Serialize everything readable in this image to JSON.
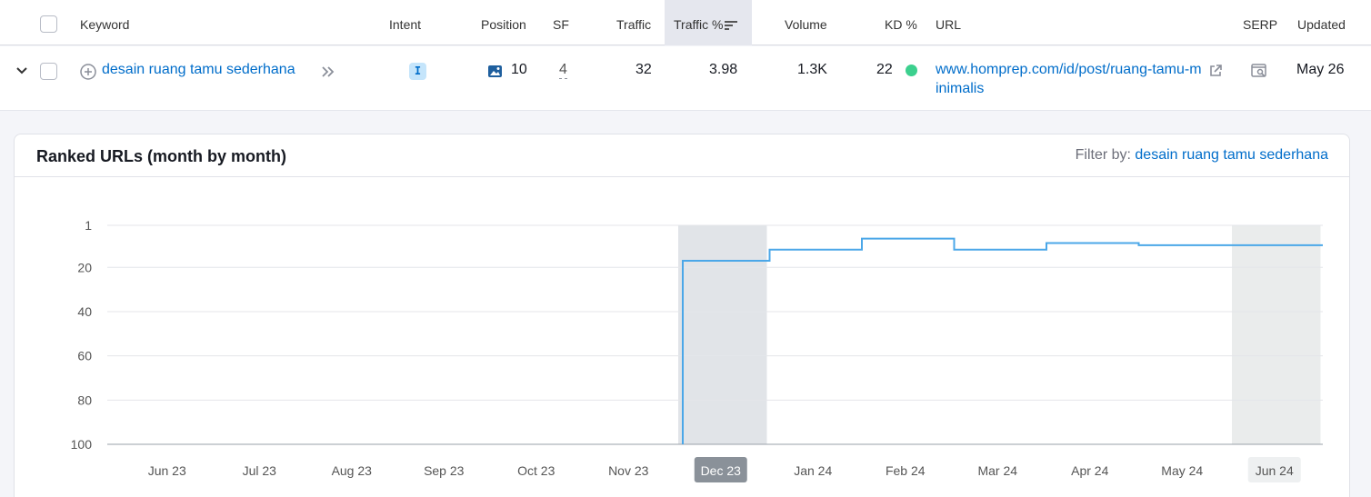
{
  "table": {
    "headers": {
      "keyword": "Keyword",
      "intent": "Intent",
      "position": "Position",
      "sf": "SF",
      "traffic": "Traffic",
      "traffic_pct": "Traffic %",
      "volume": "Volume",
      "kd": "KD %",
      "url": "URL",
      "serp": "SERP",
      "updated": "Updated"
    },
    "row": {
      "keyword": "desain ruang tamu sederhana",
      "intent": "I",
      "position": "10",
      "sf": "4",
      "traffic": "32",
      "traffic_pct": "3.98",
      "volume": "1.3K",
      "kd": "22",
      "kd_color": "#3cd08e",
      "url": "www.homprep.com/id/post/ruang-tamu-minimalis",
      "updated": "May 26"
    }
  },
  "card": {
    "title": "Ranked URLs (month by month)",
    "filter_label": "Filter by:",
    "filter_value": "desain ruang tamu sederhana"
  },
  "chart_data": {
    "type": "line",
    "step": true,
    "y_reversed": true,
    "ylim": [
      1,
      100
    ],
    "yticks": [
      1,
      20,
      40,
      60,
      80,
      100
    ],
    "categories": [
      "Jun 23",
      "Jul 23",
      "Aug 23",
      "Sep 23",
      "Oct 23",
      "Nov 23",
      "Dec 23",
      "Jan 24",
      "Feb 24",
      "Mar 24",
      "Apr 24",
      "May 24",
      "Jun 24"
    ],
    "highlighted": [
      "Dec 23",
      "Jun 24"
    ],
    "active_tick": "Dec 23",
    "series": [
      {
        "values": [
          null,
          null,
          null,
          null,
          null,
          null,
          17,
          12,
          7,
          12,
          9,
          10,
          10
        ],
        "color": "#4ba7e8"
      }
    ],
    "grid": true
  }
}
